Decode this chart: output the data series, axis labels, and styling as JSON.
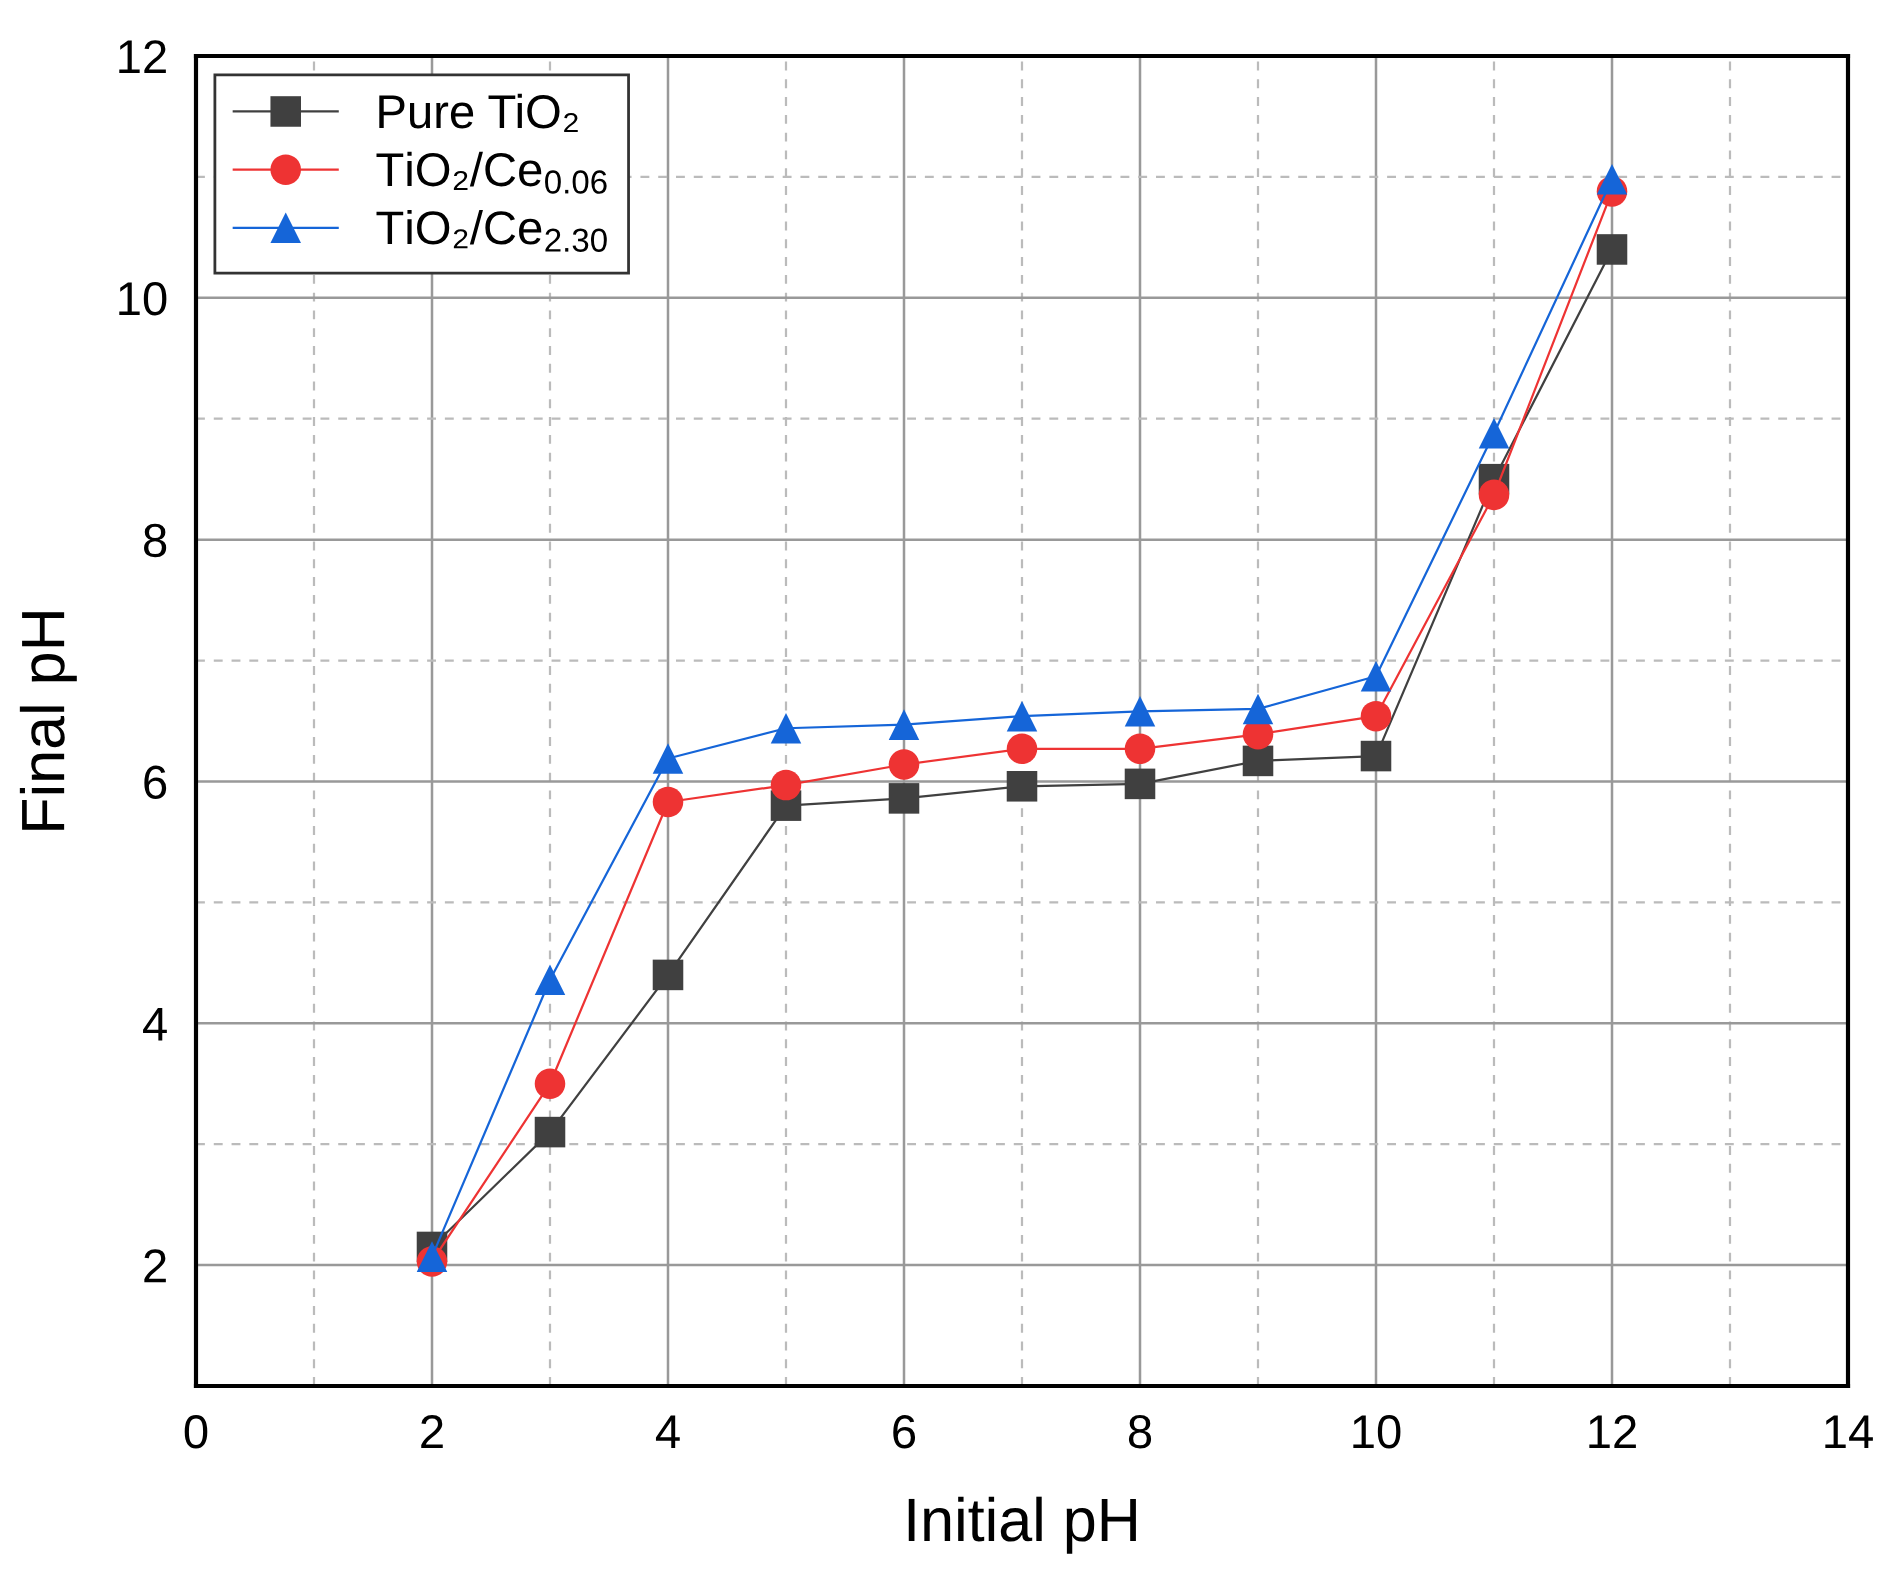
{
  "chart_data": {
    "type": "line",
    "xlabel": "Initial pH",
    "ylabel": "Final pH",
    "x": [
      2,
      3,
      4,
      5,
      6,
      7,
      8,
      9,
      10,
      11,
      12
    ],
    "series": [
      {
        "name": "Pure TiO₂",
        "color": "#404040",
        "marker": "square",
        "values": [
          2.15,
          3.1,
          4.4,
          5.8,
          5.86,
          5.96,
          5.98,
          6.17,
          6.21,
          8.5,
          10.4
        ]
      },
      {
        "name": "TiO₂/Ce$_{0.06}$",
        "color": "#ee3333",
        "marker": "circle",
        "values": [
          2.03,
          3.5,
          5.83,
          5.97,
          6.14,
          6.27,
          6.27,
          6.39,
          6.54,
          8.37,
          10.88
        ]
      },
      {
        "name": "TiO₂/Ce$_{2.30}$",
        "color": "#1565d8",
        "marker": "triangle",
        "values": [
          2.07,
          4.36,
          6.19,
          6.44,
          6.47,
          6.54,
          6.58,
          6.6,
          6.87,
          8.88,
          10.98
        ]
      }
    ],
    "xlim": [
      0,
      14
    ],
    "xticks": [
      0,
      2,
      4,
      6,
      8,
      10,
      12,
      14
    ],
    "ylim": [
      1,
      12
    ],
    "yticks": [
      2,
      4,
      6,
      8,
      10,
      12
    ],
    "grid": true,
    "legend": "top left",
    "line_style": "solid"
  }
}
